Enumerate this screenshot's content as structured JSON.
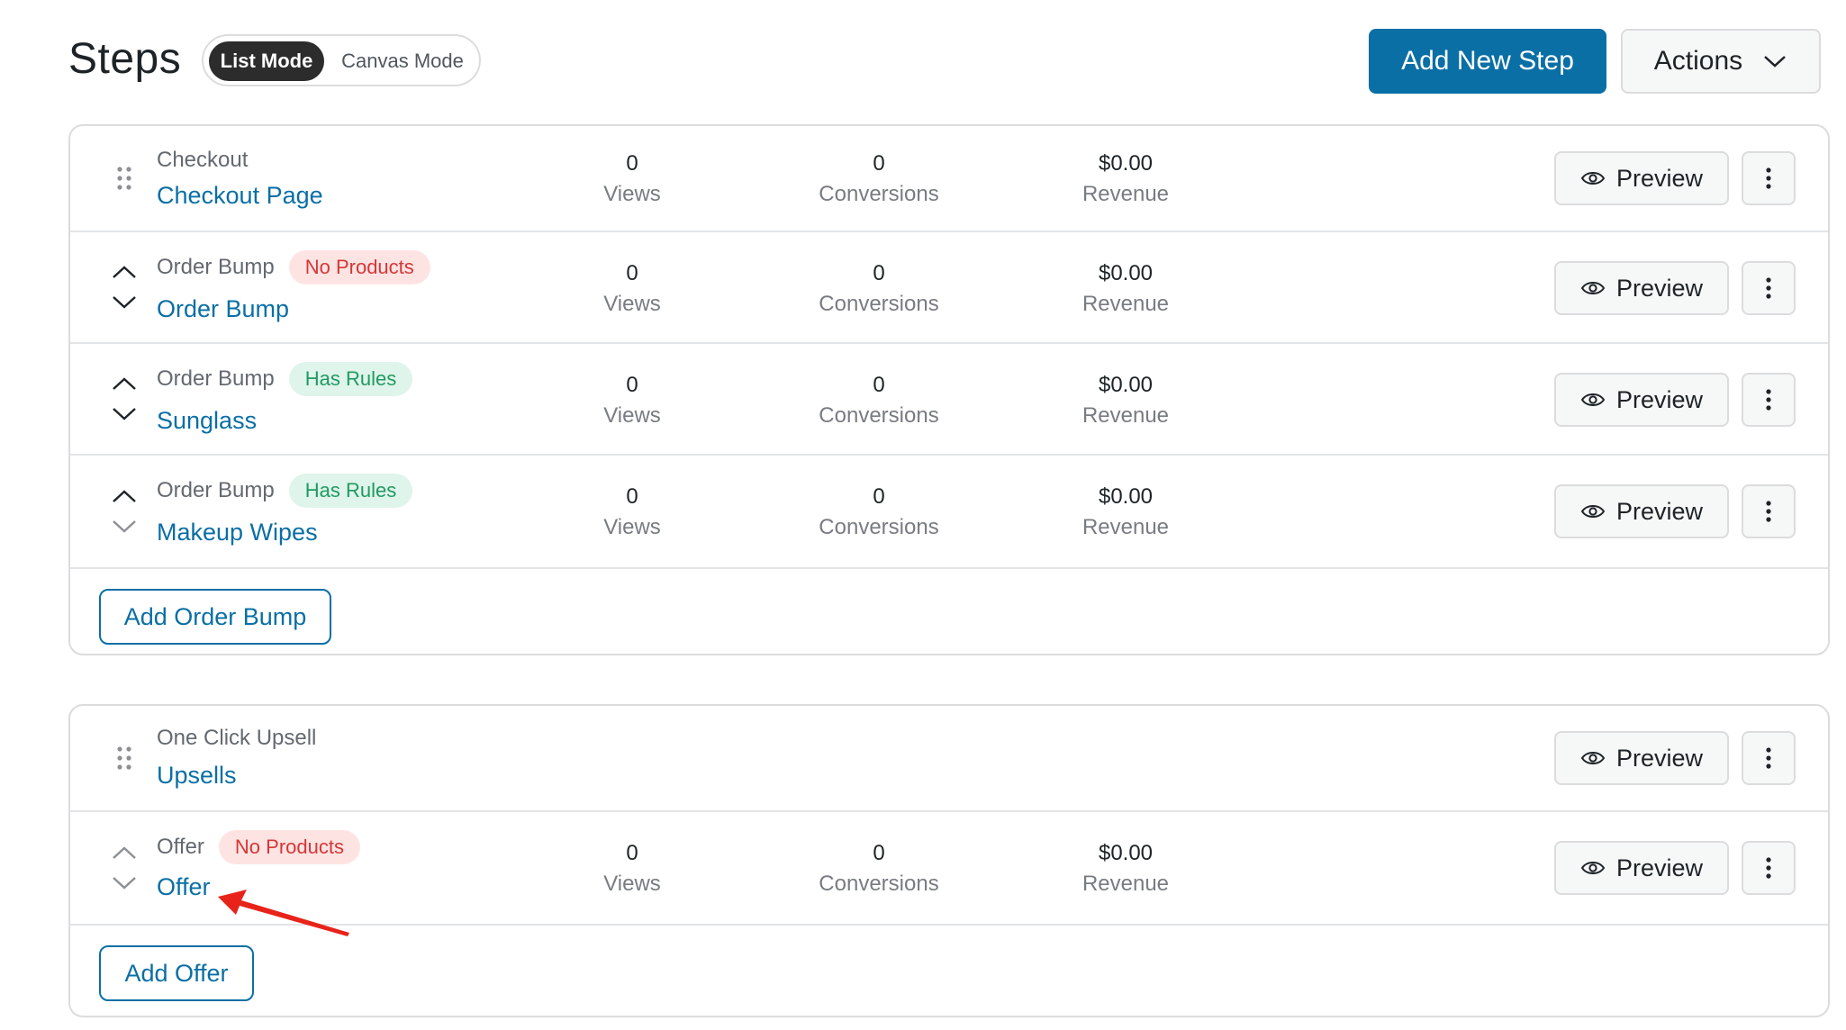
{
  "header": {
    "title": "Steps",
    "mode_active": "List Mode",
    "mode_inactive": "Canvas Mode",
    "add_step_label": "Add New Step",
    "actions_label": "Actions",
    "actions_icon": "chevron-down-icon"
  },
  "colors": {
    "brand_blue": "#0a6fa5",
    "badge_red_text": "#d63638",
    "badge_red_bg": "#fde4e2",
    "badge_green_text": "#1f9a63",
    "badge_green_bg": "#dff4ea",
    "annotation_arrow": "#e8231a"
  },
  "checkout_group": {
    "rows": [
      {
        "type": "Checkout",
        "name": "Checkout Page",
        "badge": "",
        "views": "0",
        "views_label": "Views",
        "conversions": "0",
        "conversions_label": "Conversions",
        "revenue": "$0.00",
        "revenue_label": "Revenue",
        "preview_label": "Preview"
      },
      {
        "type": "Order Bump",
        "name": "Order Bump",
        "badge": "No Products",
        "views": "0",
        "views_label": "Views",
        "conversions": "0",
        "conversions_label": "Conversions",
        "revenue": "$0.00",
        "revenue_label": "Revenue",
        "preview_label": "Preview"
      },
      {
        "type": "Order Bump",
        "name": "Sunglass",
        "badge": "Has Rules",
        "views": "0",
        "views_label": "Views",
        "conversions": "0",
        "conversions_label": "Conversions",
        "revenue": "$0.00",
        "revenue_label": "Revenue",
        "preview_label": "Preview"
      },
      {
        "type": "Order Bump",
        "name": "Makeup Wipes",
        "badge": "Has Rules",
        "views": "0",
        "views_label": "Views",
        "conversions": "0",
        "conversions_label": "Conversions",
        "revenue": "$0.00",
        "revenue_label": "Revenue",
        "preview_label": "Preview"
      }
    ],
    "add_label": "Add Order Bump"
  },
  "upsell_group": {
    "rows": [
      {
        "type": "One Click Upsell",
        "name": "Upsells",
        "preview_label": "Preview"
      },
      {
        "type": "Offer",
        "name": "Offer",
        "badge": "No Products",
        "views": "0",
        "views_label": "Views",
        "conversions": "0",
        "conversions_label": "Conversions",
        "revenue": "$0.00",
        "revenue_label": "Revenue",
        "preview_label": "Preview"
      }
    ],
    "add_label": "Add Offer"
  }
}
